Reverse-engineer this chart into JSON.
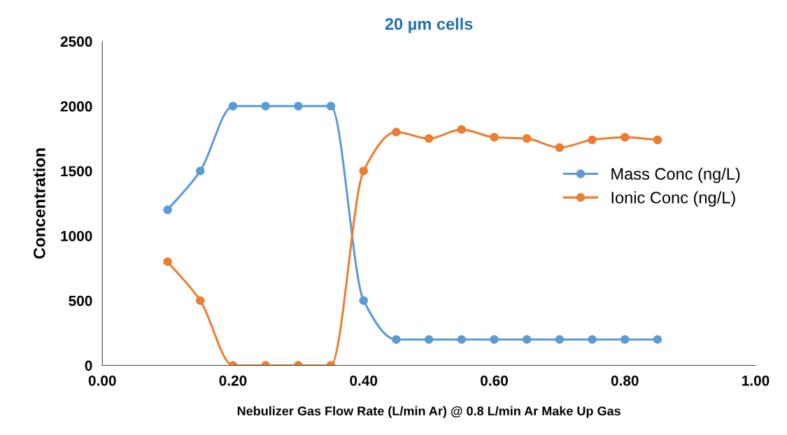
{
  "chart_data": {
    "type": "line",
    "title": "20 µm cells",
    "xlabel": "Nebulizer Gas Flow Rate (L/min Ar) @ 0.8 L/min Ar Make Up Gas",
    "ylabel": "Concentration",
    "x": [
      0.1,
      0.15,
      0.2,
      0.25,
      0.3,
      0.35,
      0.4,
      0.45,
      0.5,
      0.55,
      0.6,
      0.65,
      0.7,
      0.75,
      0.8,
      0.85
    ],
    "series": [
      {
        "name": "Mass Conc (ng/L)",
        "color": "#5b9bd5",
        "values": [
          1200,
          1500,
          2000,
          2000,
          2000,
          2000,
          500,
          200,
          200,
          200,
          200,
          200,
          200,
          200,
          200,
          200
        ]
      },
      {
        "name": "Ionic Conc (ng/L)",
        "color": "#ed7d31",
        "values": [
          800,
          500,
          0,
          0,
          0,
          0,
          1500,
          1800,
          1750,
          1820,
          1760,
          1750,
          1680,
          1740,
          1760,
          1740
        ]
      }
    ],
    "xlim": [
      0.0,
      1.0
    ],
    "xticks": [
      {
        "value": 0.0,
        "label": "0.00"
      },
      {
        "value": 0.2,
        "label": "0.20"
      },
      {
        "value": 0.4,
        "label": "0.40"
      },
      {
        "value": 0.6,
        "label": "0.60"
      },
      {
        "value": 0.8,
        "label": "0.80"
      },
      {
        "value": 1.0,
        "label": "1.00"
      }
    ],
    "ylim": [
      0,
      2500
    ],
    "yticks": [
      0,
      500,
      1000,
      1500,
      2000,
      2500
    ],
    "grid": false,
    "legend": "right",
    "marker": "circle",
    "line_style": "solid"
  }
}
